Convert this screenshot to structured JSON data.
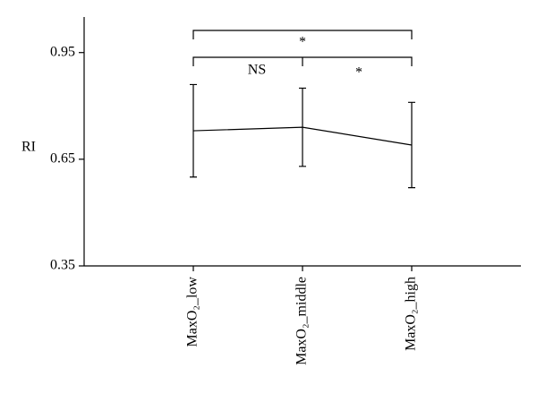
{
  "chart_data": {
    "type": "line",
    "y_label": "RI",
    "categories": [
      "MaxO₂_low",
      "MaxO₂_middle",
      "MaxO₂_high"
    ],
    "series": [
      {
        "name": "RI",
        "color": "#000000",
        "values": [
          0.73,
          0.74,
          0.69
        ],
        "errors": [
          0.13,
          0.11,
          0.12
        ]
      }
    ],
    "ylim": [
      0.35,
      1.05
    ],
    "yticks": [
      0.35,
      0.65,
      0.95
    ],
    "annotations": [
      "*",
      "NS",
      "*"
    ]
  }
}
